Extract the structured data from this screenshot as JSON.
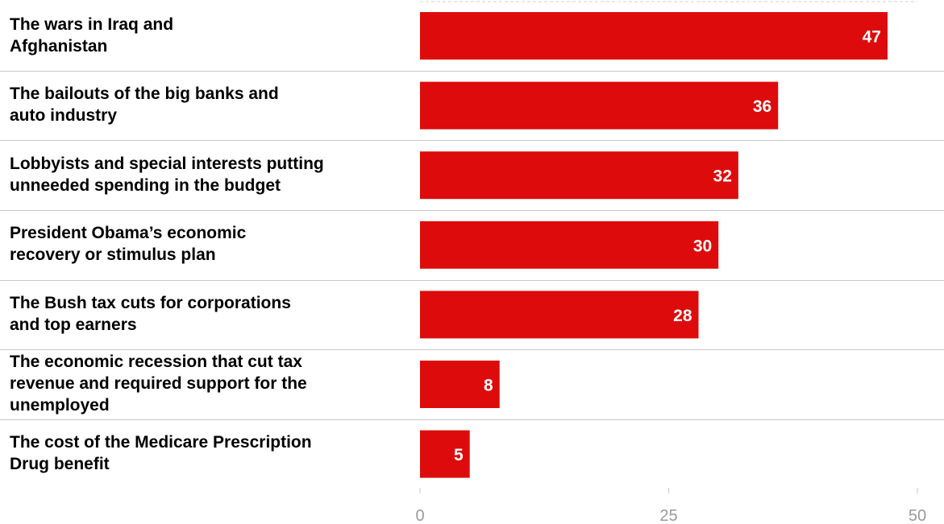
{
  "chart_data": {
    "type": "bar",
    "orientation": "horizontal",
    "categories": [
      "The wars in Iraq and\n Afghanistan",
      "The bailouts of the big banks and\nauto industry",
      "Lobbyists and special interests putting\nunneeded spending in the budget",
      "President Obama’s economic\nrecovery or stimulus plan",
      "The Bush tax cuts for corporations\nand top earners",
      "The economic recession that cut tax\nrevenue and required support for the\nunemployed",
      "The cost of the Medicare Prescription\nDrug benefit"
    ],
    "values": [
      47,
      36,
      32,
      30,
      28,
      8,
      5
    ],
    "xlim": [
      0,
      50
    ],
    "x_ticks": [
      0,
      25,
      50
    ],
    "bar_color": "#dd0b0b",
    "value_label_color": "#ffffff",
    "tick_color": "#9a9a9a",
    "separator_color": "#c8c8c8",
    "grid": false
  }
}
